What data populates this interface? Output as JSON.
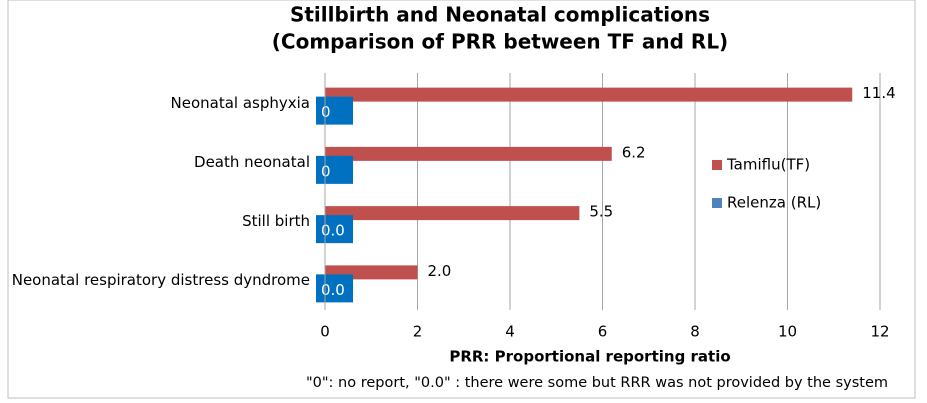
{
  "chart_data": {
    "type": "bar",
    "orientation": "horizontal",
    "title": [
      "Stillbirth and Neonatal complications",
      "(Comparison of  PRR  between TF and RL)"
    ],
    "categories": [
      "Neonatal asphyxia",
      "Death neonatal",
      "Still birth",
      "Neonatal respiratory distress dyndrome"
    ],
    "series": [
      {
        "name": "Tamiflu(TF)",
        "color": "#c0504d",
        "values": [
          11.4,
          6.2,
          5.5,
          2.0
        ],
        "value_labels": [
          "11.4",
          "6.2",
          "5.5",
          "2.0"
        ]
      },
      {
        "name": "Relenza (RL)",
        "color": "#4f81bd",
        "values": [
          0,
          0,
          0,
          0
        ],
        "value_labels": [
          "0",
          "0",
          "0.0",
          "0.0"
        ]
      }
    ],
    "xlim": [
      0,
      12
    ],
    "xticks": [
      0,
      2,
      4,
      6,
      8,
      10,
      12
    ],
    "grid": true,
    "legend": "right",
    "xlabel": "PRR: Proportional reporting ratio",
    "note": "\"0\": no report, \"0.0\" : there were some but RRR was not provided by the system"
  }
}
